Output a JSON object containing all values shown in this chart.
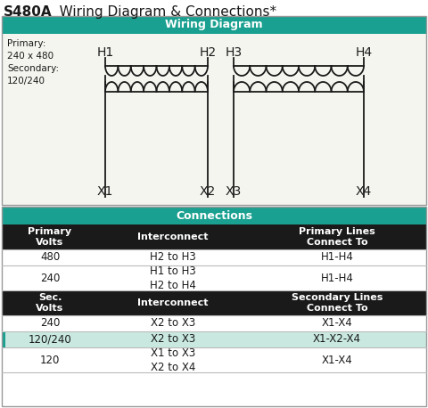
{
  "title_bold": "S480A",
  "title_rest": "   Wiring Diagram & Connections*",
  "teal_color": "#1aA090",
  "black_color": "#1a1a1a",
  "white_color": "#ffffff",
  "section1_header": "Wiring Diagram",
  "primary_label": "Primary:\n240 x 480\nSecondary:\n120/240",
  "section2_header": "Connections",
  "col_headers_primary": [
    "Primary\nVolts",
    "Interconnect",
    "Primary Lines\nConnect To"
  ],
  "col_headers_secondary": [
    "Sec.\nVolts",
    "Interconnect",
    "Secondary Lines\nConnect To"
  ],
  "primary_rows": [
    [
      "480",
      "H2 to H3",
      "H1-H4"
    ],
    [
      "240",
      "H1 to H3\nH2 to H4",
      "H1-H4"
    ]
  ],
  "secondary_rows": [
    [
      "240",
      "X2 to X3",
      "X1-X4"
    ],
    [
      "120/240",
      "X2 to X3",
      "X1-X2-X4"
    ],
    [
      "120",
      "X1 to X3\nX2 to X4",
      "X1-X4"
    ]
  ],
  "highlight_row_secondary": 1,
  "highlight_color": "#c8e8e0",
  "row_divider_color": "#bbbbbb",
  "bg_color": "#f5f5f0"
}
